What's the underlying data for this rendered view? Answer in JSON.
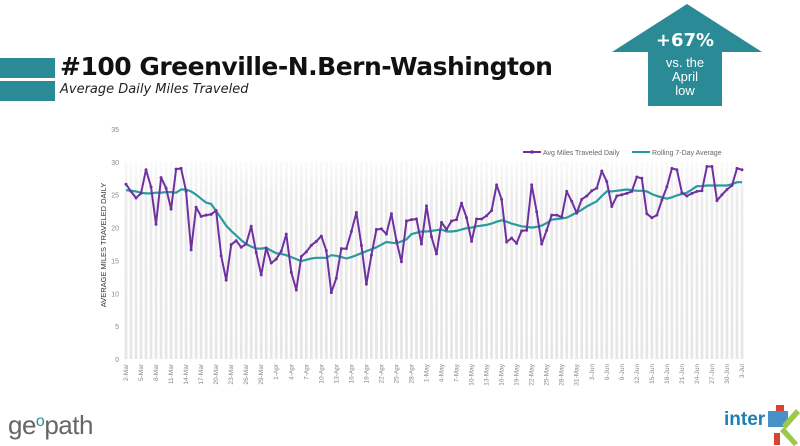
{
  "header": {
    "title": "#100 Greenville-N.Bern-Washington",
    "subtitle": "Average Daily Miles Traveled"
  },
  "callout": {
    "value": "+67%",
    "line1": "vs. the",
    "line2": "April",
    "line3": "low",
    "color": "#2a8a95"
  },
  "logos": {
    "left_pre": "ge",
    "left_o": "o",
    "left_post": "path",
    "right": "inter",
    "right_mark": "mx"
  },
  "chart_data": {
    "type": "line",
    "title": "",
    "xlabel": "",
    "ylabel": "AVERAGE MILES TRAVELED DAILY",
    "ylim": [
      0,
      35
    ],
    "yticks": [
      0,
      5,
      10,
      15,
      20,
      25,
      30,
      35
    ],
    "legend_position": "top-right",
    "x_tick_labels": [
      "2-Mar",
      "5-Mar",
      "8-Mar",
      "11-Mar",
      "14-Mar",
      "17-Mar",
      "20-Mar",
      "23-Mar",
      "26-Mar",
      "29-Mar",
      "1-Apr",
      "4-Apr",
      "7-Apr",
      "10-Apr",
      "13-Apr",
      "16-Apr",
      "19-Apr",
      "22-Apr",
      "25-Apr",
      "28-Apr",
      "1-May",
      "4-May",
      "7-May",
      "10-May",
      "13-May",
      "16-May",
      "19-May",
      "22-May",
      "25-May",
      "28-May",
      "31-May",
      "3-Jun",
      "6-Jun",
      "9-Jun",
      "12-Jun",
      "15-Jun",
      "18-Jun",
      "21-Jun",
      "24-Jun",
      "27-Jun",
      "30-Jun",
      "3-Jul"
    ],
    "x_start": "2-Mar",
    "x_end": "3-Jul",
    "series": [
      {
        "name": "Avg Miles Traveled Daily",
        "color": "#7030a0",
        "values": [
          26.6,
          25.5,
          24.5,
          25.2,
          28.8,
          26.2,
          20.5,
          27.6,
          26.0,
          22.8,
          28.9,
          29.0,
          25.5,
          16.6,
          23.1,
          21.7,
          21.9,
          22.0,
          22.6,
          15.7,
          12.0,
          17.4,
          18.0,
          17.0,
          17.5,
          20.2,
          16.2,
          12.8,
          16.9,
          14.6,
          15.2,
          16.4,
          19.0,
          13.2,
          10.5,
          15.6,
          16.3,
          17.3,
          17.9,
          18.7,
          16.5,
          10.1,
          12.3,
          16.8,
          16.8,
          19.4,
          22.3,
          17.3,
          11.4,
          15.8,
          19.7,
          19.8,
          19.0,
          22.1,
          18.0,
          14.8,
          21.0,
          21.2,
          21.3,
          17.5,
          23.3,
          18.6,
          16.0,
          20.8,
          19.7,
          21.0,
          21.2,
          23.7,
          21.5,
          17.9,
          21.3,
          21.3,
          21.8,
          22.6,
          26.5,
          24.3,
          17.8,
          18.4,
          17.6,
          19.5,
          19.6,
          26.5,
          22.4,
          17.5,
          19.6,
          21.9,
          21.9,
          21.6,
          25.5,
          24.0,
          22.2,
          24.3,
          24.8,
          25.6,
          26.0,
          28.6,
          27.0,
          23.2,
          24.8,
          25.0,
          25.2,
          25.5,
          27.7,
          27.5,
          22.1,
          21.5,
          21.9,
          24.2,
          26.2,
          29.0,
          28.8,
          25.3,
          24.8,
          25.2,
          25.5,
          25.6,
          29.3,
          29.3,
          24.1,
          25.0,
          25.8,
          26.4,
          29.0,
          28.8
        ]
      },
      {
        "name": "Rolling 7-Day Average",
        "color": "#2a9a9f",
        "values": [
          25.7,
          25.6,
          25.5,
          25.3,
          25.2,
          25.2,
          25.3,
          25.3,
          25.4,
          25.4,
          25.3,
          25.8,
          25.8,
          25.5,
          25.0,
          24.4,
          23.8,
          23.6,
          22.5,
          21.4,
          20.3,
          19.5,
          18.8,
          18.1,
          17.5,
          17.1,
          16.8,
          16.8,
          16.9,
          16.5,
          16.1,
          16.0,
          15.8,
          15.5,
          15.2,
          14.9,
          15.1,
          15.3,
          15.4,
          15.4,
          15.4,
          15.8,
          15.7,
          15.5,
          15.3,
          15.5,
          15.8,
          16.1,
          16.4,
          16.7,
          17.0,
          17.4,
          17.8,
          17.7,
          17.6,
          17.9,
          18.2,
          19.0,
          19.2,
          19.4,
          19.4,
          19.5,
          19.6,
          19.7,
          19.4,
          19.4,
          19.5,
          19.7,
          19.9,
          20.0,
          20.2,
          20.3,
          20.4,
          20.6,
          20.9,
          21.1,
          20.9,
          20.6,
          20.4,
          20.2,
          20.1,
          20.0,
          20.1,
          20.3,
          20.7,
          21.2,
          21.3,
          21.4,
          21.5,
          21.9,
          22.3,
          22.7,
          23.2,
          23.6,
          24.0,
          24.8,
          25.5,
          25.5,
          25.6,
          25.7,
          25.8,
          25.7,
          25.6,
          25.6,
          25.5,
          25.1,
          24.8,
          24.6,
          24.4,
          24.6,
          24.9,
          25.1,
          25.3,
          25.8,
          26.3,
          26.3,
          26.4,
          26.4,
          26.4,
          26.4,
          26.4,
          26.6,
          26.9,
          26.9
        ]
      }
    ]
  }
}
